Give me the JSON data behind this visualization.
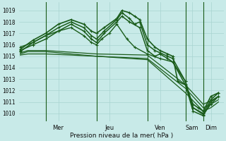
{
  "bg_color": "#c8eae8",
  "grid_color": "#a8d4d0",
  "line_color_dark": "#1a5c1a",
  "line_color_mid": "#2d7a2d",
  "marker": "+",
  "ylabel_ticks": [
    1010,
    1011,
    1012,
    1013,
    1014,
    1015,
    1016,
    1017,
    1018,
    1019
  ],
  "ylim": [
    1009.3,
    1019.7
  ],
  "xlim": [
    -0.05,
    8.0
  ],
  "xlabel": "Pression niveau de la mer( hPa )",
  "day_labels": [
    "Mer",
    "Jeu",
    "Ven",
    "Sam",
    "Dim"
  ],
  "day_positions": [
    1.5,
    3.5,
    5.5,
    6.75,
    7.5
  ],
  "vline_positions": [
    1.0,
    3.0,
    5.0,
    6.5,
    7.2
  ],
  "n_points": 80,
  "series": [
    {
      "name": "flat_low1",
      "color": "#1a5c1a",
      "lw": 0.9,
      "marker": null,
      "ms": 0,
      "pts": [
        [
          0,
          1015.3
        ],
        [
          0.3,
          1015.5
        ],
        [
          1.0,
          1015.5
        ],
        [
          3.0,
          1015.2
        ],
        [
          5.0,
          1015.1
        ],
        [
          6.5,
          1012.5
        ],
        [
          7.2,
          1010.8
        ],
        [
          7.5,
          1011.1
        ],
        [
          7.8,
          1011.5
        ]
      ]
    },
    {
      "name": "flat_low2",
      "color": "#1a5c1a",
      "lw": 0.9,
      "marker": null,
      "ms": 0,
      "pts": [
        [
          0,
          1015.2
        ],
        [
          0.3,
          1015.4
        ],
        [
          1.0,
          1015.4
        ],
        [
          3.0,
          1015.0
        ],
        [
          5.0,
          1014.8
        ],
        [
          6.5,
          1012.2
        ],
        [
          7.2,
          1010.5
        ],
        [
          7.5,
          1010.8
        ],
        [
          7.8,
          1011.2
        ]
      ]
    },
    {
      "name": "flat_low3",
      "color": "#1a5c1a",
      "lw": 0.9,
      "marker": null,
      "ms": 0,
      "pts": [
        [
          0,
          1015.1
        ],
        [
          0.3,
          1015.2
        ],
        [
          1.0,
          1015.2
        ],
        [
          3.0,
          1015.0
        ],
        [
          5.0,
          1014.7
        ],
        [
          6.5,
          1011.8
        ],
        [
          7.2,
          1010.2
        ],
        [
          7.5,
          1010.5
        ],
        [
          7.8,
          1011.0
        ]
      ]
    },
    {
      "name": "rise_marker1",
      "color": "#1a5c1a",
      "lw": 1.0,
      "marker": "+",
      "ms": 3,
      "pts": [
        [
          0,
          1015.8
        ],
        [
          0.5,
          1016.2
        ],
        [
          1.0,
          1016.8
        ],
        [
          1.5,
          1017.2
        ],
        [
          2.0,
          1017.5
        ],
        [
          2.5,
          1016.8
        ],
        [
          2.8,
          1016.2
        ],
        [
          3.0,
          1016.0
        ],
        [
          3.2,
          1016.5
        ],
        [
          3.5,
          1017.0
        ],
        [
          3.8,
          1017.8
        ],
        [
          4.2,
          1016.5
        ],
        [
          4.5,
          1015.8
        ],
        [
          5.0,
          1015.2
        ],
        [
          5.5,
          1014.8
        ],
        [
          6.0,
          1014.5
        ],
        [
          6.5,
          1012.8
        ],
        [
          6.8,
          1010.5
        ],
        [
          7.2,
          1009.9
        ],
        [
          7.5,
          1010.8
        ],
        [
          7.8,
          1011.5
        ]
      ]
    },
    {
      "name": "rise_high1",
      "color": "#1a5c1a",
      "lw": 1.1,
      "marker": "+",
      "ms": 3,
      "pts": [
        [
          0,
          1015.5
        ],
        [
          0.5,
          1016.0
        ],
        [
          1.0,
          1016.5
        ],
        [
          1.5,
          1017.2
        ],
        [
          2.0,
          1017.8
        ],
        [
          2.5,
          1017.2
        ],
        [
          2.8,
          1016.5
        ],
        [
          3.0,
          1016.2
        ],
        [
          3.3,
          1017.0
        ],
        [
          3.8,
          1018.0
        ],
        [
          4.0,
          1018.5
        ],
        [
          4.3,
          1018.0
        ],
        [
          4.7,
          1017.5
        ],
        [
          5.0,
          1015.5
        ],
        [
          5.3,
          1015.0
        ],
        [
          5.5,
          1015.2
        ],
        [
          5.8,
          1014.8
        ],
        [
          6.0,
          1014.5
        ],
        [
          6.5,
          1012.5
        ],
        [
          6.8,
          1010.2
        ],
        [
          7.2,
          1009.8
        ],
        [
          7.5,
          1011.0
        ],
        [
          7.8,
          1011.5
        ]
      ]
    },
    {
      "name": "rise_high2",
      "color": "#1a5c1a",
      "lw": 1.1,
      "marker": "+",
      "ms": 3,
      "pts": [
        [
          0,
          1015.4
        ],
        [
          0.5,
          1016.2
        ],
        [
          1.0,
          1016.8
        ],
        [
          1.5,
          1017.5
        ],
        [
          2.0,
          1018.0
        ],
        [
          2.5,
          1017.5
        ],
        [
          2.8,
          1016.8
        ],
        [
          3.0,
          1016.5
        ],
        [
          3.3,
          1017.2
        ],
        [
          3.8,
          1018.2
        ],
        [
          4.0,
          1018.8
        ],
        [
          4.3,
          1018.3
        ],
        [
          4.5,
          1017.8
        ],
        [
          4.7,
          1018.0
        ],
        [
          5.0,
          1016.0
        ],
        [
          5.3,
          1015.5
        ],
        [
          5.5,
          1015.3
        ],
        [
          5.8,
          1015.0
        ],
        [
          6.0,
          1014.8
        ],
        [
          6.5,
          1012.8
        ],
        [
          6.8,
          1010.5
        ],
        [
          7.2,
          1010.0
        ],
        [
          7.5,
          1011.2
        ],
        [
          7.8,
          1011.8
        ]
      ]
    },
    {
      "name": "peak_high",
      "color": "#1a5c1a",
      "lw": 1.2,
      "marker": "+",
      "ms": 3,
      "pts": [
        [
          0,
          1015.6
        ],
        [
          0.5,
          1016.4
        ],
        [
          1.0,
          1017.0
        ],
        [
          1.5,
          1017.8
        ],
        [
          2.0,
          1018.2
        ],
        [
          2.5,
          1017.8
        ],
        [
          2.8,
          1017.2
        ],
        [
          3.0,
          1017.0
        ],
        [
          3.3,
          1017.5
        ],
        [
          3.8,
          1018.3
        ],
        [
          4.0,
          1019.0
        ],
        [
          4.3,
          1018.8
        ],
        [
          4.5,
          1018.5
        ],
        [
          4.7,
          1018.2
        ],
        [
          5.0,
          1016.5
        ],
        [
          5.3,
          1015.8
        ],
        [
          5.5,
          1015.5
        ],
        [
          5.8,
          1015.2
        ],
        [
          6.0,
          1015.0
        ],
        [
          6.2,
          1012.8
        ],
        [
          6.5,
          1012.5
        ],
        [
          6.8,
          1010.8
        ],
        [
          7.0,
          1010.5
        ],
        [
          7.2,
          1010.2
        ],
        [
          7.5,
          1011.5
        ],
        [
          7.8,
          1011.8
        ]
      ]
    }
  ]
}
